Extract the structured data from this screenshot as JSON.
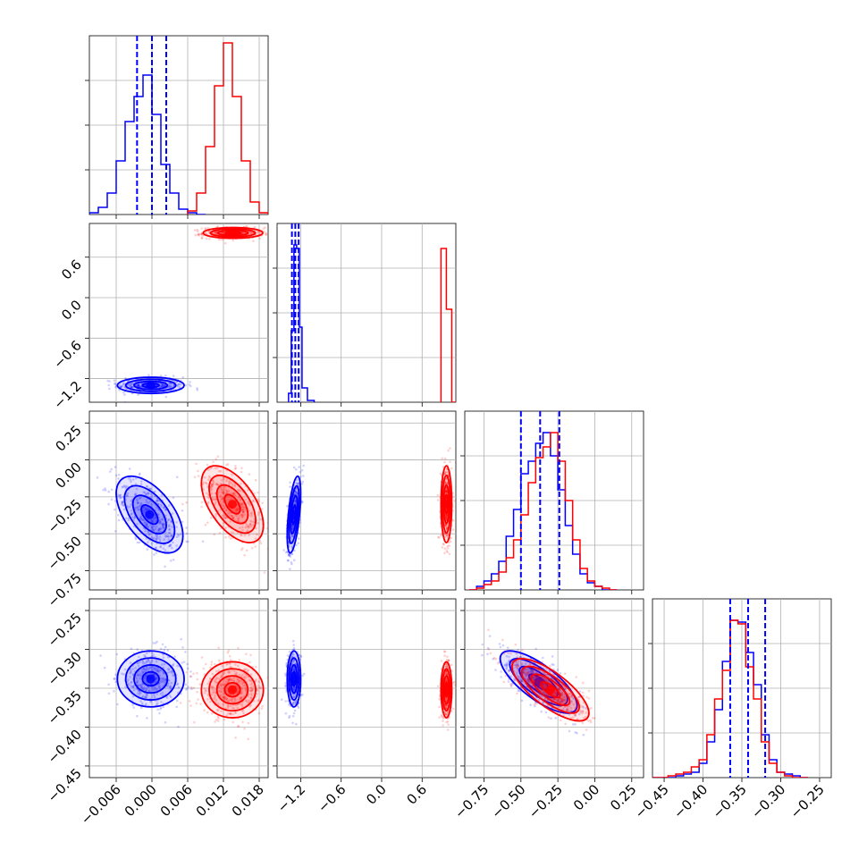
{
  "chart_data": {
    "type": "corner",
    "grid": true,
    "parameters": [
      {
        "range": [
          -0.0105,
          0.0195
        ],
        "ticks": [
          -0.006,
          0.0,
          0.006,
          0.012,
          0.018
        ],
        "tick_labels": [
          "−0.006",
          "0.000",
          "0.006",
          "0.012",
          "0.018"
        ]
      },
      {
        "range": [
          -1.55,
          1.1
        ],
        "ticks": [
          -1.2,
          -0.6,
          0.0,
          0.6
        ],
        "tick_labels": [
          "−1.2",
          "−0.6",
          "0.0",
          "0.6"
        ]
      },
      {
        "range": [
          -0.88,
          0.33
        ],
        "ticks": [
          -0.75,
          -0.5,
          -0.25,
          0.0,
          0.25
        ],
        "tick_labels": [
          "−0.75",
          "−0.50",
          "−0.25",
          "0.00",
          "0.25"
        ]
      },
      {
        "range": [
          -0.465,
          -0.235
        ],
        "ticks": [
          -0.45,
          -0.4,
          -0.35,
          -0.3,
          -0.25
        ],
        "tick_labels": [
          "−0.45",
          "−0.40",
          "−0.35",
          "−0.30",
          "−0.25"
        ]
      }
    ],
    "series": [
      {
        "color": "#0000ff",
        "quantiles": [
          [
            -0.0025,
            0.0,
            0.0024
          ],
          [
            -1.33,
            -1.28,
            -1.23
          ],
          [
            -0.5,
            -0.37,
            -0.24
          ],
          [
            -0.365,
            -0.342,
            -0.32
          ]
        ],
        "histograms": [
          {
            "edges": [
              -0.0105,
              -0.009,
              -0.0075,
              -0.006,
              -0.0045,
              -0.003,
              -0.0015,
              0.0,
              0.0015,
              0.003,
              0.0045,
              0.006,
              0.0075,
              0.009
            ],
            "counts": [
              0.01,
              0.04,
              0.12,
              0.3,
              0.52,
              0.66,
              0.78,
              0.56,
              0.28,
              0.12,
              0.03,
              0.01,
              0.0
            ]
          },
          {
            "edges": [
              -1.38,
              -1.34,
              -1.3,
              -1.26,
              -1.22,
              -1.18,
              -1.1,
              -1.0
            ],
            "counts": [
              0.05,
              0.4,
              0.88,
              0.86,
              0.42,
              0.08,
              0.01
            ]
          },
          {
            "edges": [
              -0.85,
              -0.8,
              -0.75,
              -0.7,
              -0.65,
              -0.6,
              -0.55,
              -0.5,
              -0.45,
              -0.4,
              -0.35,
              -0.3,
              -0.25,
              -0.2,
              -0.15,
              -0.1,
              -0.05,
              0.0,
              0.05,
              0.1,
              0.15
            ],
            "counts": [
              0.0,
              0.02,
              0.05,
              0.09,
              0.16,
              0.3,
              0.45,
              0.65,
              0.72,
              0.82,
              0.88,
              0.75,
              0.56,
              0.36,
              0.2,
              0.09,
              0.04,
              0.02,
              0.0,
              0.0
            ]
          },
          {
            "edges": [
              -0.465,
              -0.455,
              -0.445,
              -0.435,
              -0.425,
              -0.415,
              -0.405,
              -0.395,
              -0.385,
              -0.375,
              -0.365,
              -0.355,
              -0.345,
              -0.335,
              -0.325,
              -0.315,
              -0.305,
              -0.295,
              -0.285,
              -0.275,
              -0.265
            ],
            "counts": [
              0.0,
              0.0,
              0.0,
              0.01,
              0.02,
              0.03,
              0.08,
              0.2,
              0.38,
              0.65,
              0.88,
              0.87,
              0.7,
              0.52,
              0.24,
              0.1,
              0.03,
              0.02,
              0.01,
              0.0
            ]
          }
        ],
        "scatter_2d": [
          {
            "x": 0,
            "y": 1,
            "center": [
              -0.0002,
              -1.3
            ],
            "sigma": [
              0.0028,
              0.06
            ],
            "corr": 0.0
          },
          {
            "x": 0,
            "y": 2,
            "center": [
              -0.0004,
              -0.37
            ],
            "sigma": [
              0.0028,
              0.13
            ],
            "corr": -0.55
          },
          {
            "x": 0,
            "y": 3,
            "center": [
              -0.0002,
              -0.338
            ],
            "sigma": [
              0.0028,
              0.018
            ],
            "corr": 0.0
          },
          {
            "x": 1,
            "y": 2,
            "center": [
              -1.3,
              -0.37
            ],
            "sigma": [
              0.05,
              0.13
            ],
            "corr": 0.55
          },
          {
            "x": 1,
            "y": 3,
            "center": [
              -1.3,
              -0.338
            ],
            "sigma": [
              0.05,
              0.018
            ],
            "corr": 0.0
          },
          {
            "x": 2,
            "y": 3,
            "center": [
              -0.38,
              -0.342
            ],
            "sigma": [
              0.13,
              0.02
            ],
            "corr": -0.75
          }
        ]
      },
      {
        "color": "#ff0000",
        "quantiles": null,
        "histograms": [
          {
            "edges": [
              0.006,
              0.0075,
              0.009,
              0.0105,
              0.012,
              0.0135,
              0.015,
              0.0165,
              0.018,
              0.0195
            ],
            "counts": [
              0.02,
              0.12,
              0.38,
              0.72,
              0.96,
              0.66,
              0.3,
              0.07,
              0.01
            ]
          },
          {
            "edges": [
              0.88,
              0.96,
              1.04,
              1.12
            ],
            "counts": [
              0.86,
              0.52,
              0.0
            ]
          },
          {
            "edges": [
              -0.85,
              -0.8,
              -0.75,
              -0.7,
              -0.65,
              -0.6,
              -0.55,
              -0.5,
              -0.45,
              -0.4,
              -0.35,
              -0.3,
              -0.25,
              -0.2,
              -0.15,
              -0.1,
              -0.05,
              0.0,
              0.05,
              0.1,
              0.15
            ],
            "counts": [
              0.0,
              0.01,
              0.03,
              0.05,
              0.1,
              0.18,
              0.28,
              0.42,
              0.6,
              0.74,
              0.8,
              0.88,
              0.72,
              0.5,
              0.28,
              0.12,
              0.05,
              0.02,
              0.01,
              0.0
            ]
          },
          {
            "edges": [
              -0.465,
              -0.455,
              -0.445,
              -0.435,
              -0.425,
              -0.415,
              -0.405,
              -0.395,
              -0.385,
              -0.375,
              -0.365,
              -0.355,
              -0.345,
              -0.335,
              -0.325,
              -0.315,
              -0.305,
              -0.295,
              -0.285,
              -0.275,
              -0.265
            ],
            "counts": [
              0.0,
              0.0,
              0.01,
              0.02,
              0.03,
              0.06,
              0.1,
              0.24,
              0.44,
              0.6,
              0.88,
              0.86,
              0.62,
              0.44,
              0.2,
              0.08,
              0.03,
              0.01,
              0.0,
              0.0
            ]
          }
        ],
        "scatter_2d": [
          {
            "x": 0,
            "y": 1,
            "center": [
              0.0136,
              0.96
            ],
            "sigma": [
              0.0025,
              0.04
            ],
            "corr": 0.0
          },
          {
            "x": 0,
            "y": 2,
            "center": [
              0.0135,
              -0.3
            ],
            "sigma": [
              0.0026,
              0.13
            ],
            "corr": -0.55
          },
          {
            "x": 0,
            "y": 3,
            "center": [
              0.0135,
              -0.352
            ],
            "sigma": [
              0.0026,
              0.018
            ],
            "corr": 0.0
          },
          {
            "x": 1,
            "y": 2,
            "center": [
              0.96,
              -0.3
            ],
            "sigma": [
              0.04,
              0.13
            ],
            "corr": 0.0
          },
          {
            "x": 1,
            "y": 3,
            "center": [
              0.96,
              -0.352
            ],
            "sigma": [
              0.04,
              0.018
            ],
            "corr": 0.0
          },
          {
            "x": 2,
            "y": 3,
            "center": [
              -0.3,
              -0.352
            ],
            "sigma": [
              0.13,
              0.02
            ],
            "corr": -0.75
          }
        ]
      }
    ]
  }
}
